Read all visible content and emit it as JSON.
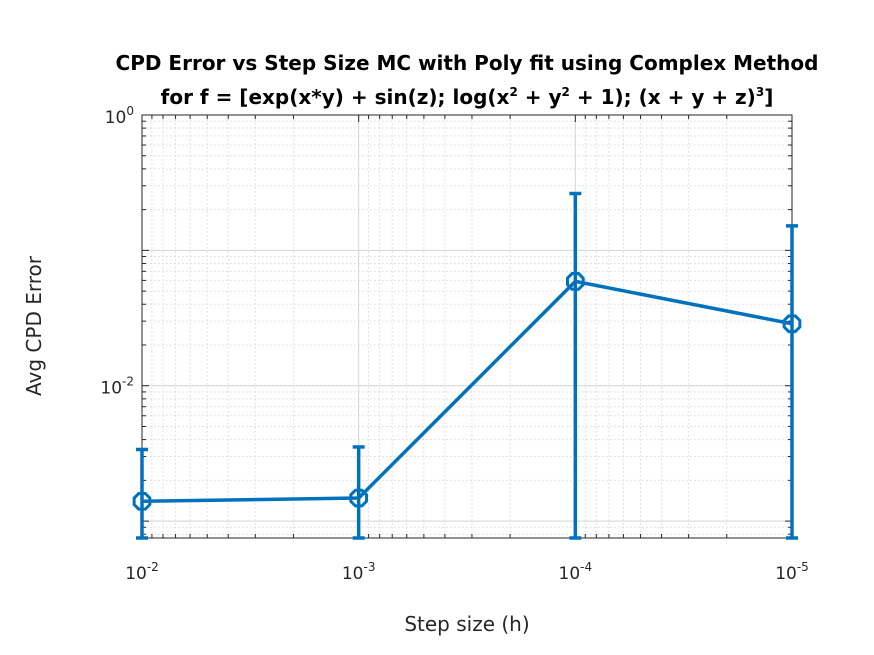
{
  "chart_data": {
    "type": "line",
    "title": "CPD Error vs Step Size MC with Poly fit using Complex Method",
    "subtitle_parts": {
      "a": "for f = [exp(x*y) + sin(z); log(x",
      "sup1": "2",
      "b": " + y",
      "sup2": "2",
      "c": " + 1); (x + y + z)",
      "sup3": "3",
      "d": "]"
    },
    "xlabel": "Step size (h)",
    "ylabel": "Avg CPD Error",
    "x_scale": "log",
    "x_reversed": true,
    "y_scale": "log",
    "xlim": [
      0.01,
      1e-05
    ],
    "ylim": [
      0.00075,
      1
    ],
    "grid": true,
    "x_ticks": [
      {
        "value": 0.01,
        "base": "10",
        "exp": "-2"
      },
      {
        "value": 0.001,
        "base": "10",
        "exp": "-3"
      },
      {
        "value": 0.0001,
        "base": "10",
        "exp": "-4"
      },
      {
        "value": 1e-05,
        "base": "10",
        "exp": "-5"
      }
    ],
    "y_ticks": [
      {
        "value": 1,
        "base": "10",
        "exp": "0"
      },
      {
        "value": 0.01,
        "base": "10",
        "exp": "-2"
      }
    ],
    "series": [
      {
        "color": "#0072bd",
        "x": [
          0.01,
          0.001,
          0.0001,
          1e-05
        ],
        "y": [
          0.0014,
          0.00148,
          0.059,
          0.0287
        ],
        "err_low": [
          0.00077,
          0.00097,
          0.059,
          0.0287
        ],
        "err_high": [
          0.00198,
          0.00205,
          0.204,
          0.123
        ]
      }
    ]
  }
}
